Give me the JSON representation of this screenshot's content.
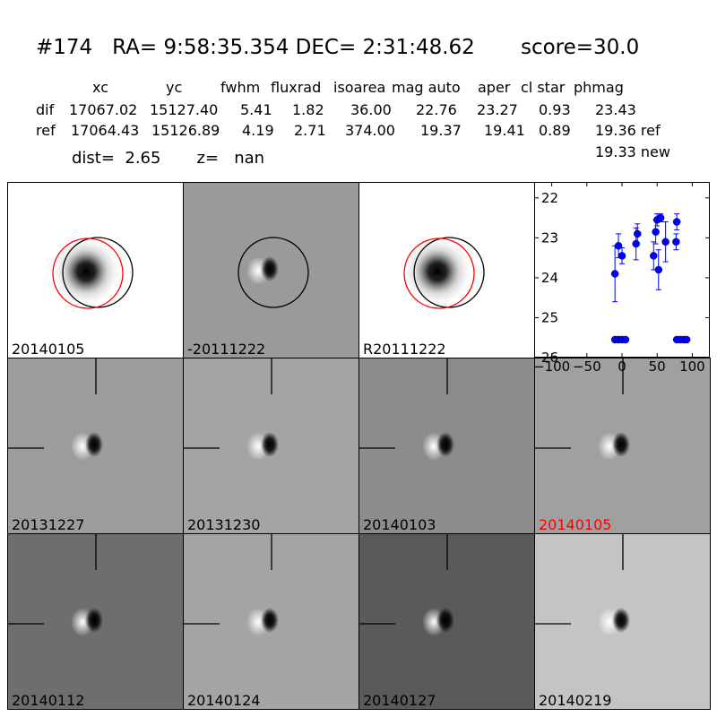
{
  "header": {
    "title": "#174   RA= 9:58:35.354 DEC= 2:31:48.62       score=30.0",
    "columns": [
      "xc",
      "yc",
      "fwhm",
      "fluxrad",
      "isoarea",
      "mag auto",
      "aper",
      "cl star",
      "phmag"
    ],
    "rows": [
      {
        "label": "dif",
        "values": [
          "17067.02",
          "15127.40",
          "5.41",
          "1.82",
          "36.00",
          "22.76",
          "23.27",
          "0.93",
          "23.43"
        ]
      },
      {
        "label": "ref",
        "values": [
          "17064.43",
          "15126.89",
          "4.19",
          "2.71",
          "374.00",
          "19.37",
          "19.41",
          "0.89",
          "19.36 ref"
        ]
      }
    ],
    "new_mag": "19.33 new",
    "dist_text": "dist=  2.65       z=   nan"
  },
  "panels": [
    {
      "label": "20140105",
      "kind": "new",
      "bg": "#ffffff",
      "circles": true
    },
    {
      "label": "-20111222",
      "kind": "diff",
      "bg": "#9a9a9a",
      "circles": true
    },
    {
      "label": "R20111222",
      "kind": "new",
      "bg": "#ffffff",
      "circles": true
    },
    {
      "label": "20131227",
      "kind": "diff",
      "bg": "#9c9c9c"
    },
    {
      "label": "20131230",
      "kind": "diff",
      "bg": "#a4a4a4"
    },
    {
      "label": "20140103",
      "kind": "diff",
      "bg": "#8c8c8c"
    },
    {
      "label": "20140105",
      "kind": "diff",
      "bg": "#a0a0a0",
      "highlight": true
    },
    {
      "label": "20140112",
      "kind": "diff",
      "bg": "#6e6e6e"
    },
    {
      "label": "20140124",
      "kind": "diff",
      "bg": "#a4a4a4"
    },
    {
      "label": "20140127",
      "kind": "diff",
      "bg": "#5a5a5a"
    },
    {
      "label": "20140219",
      "kind": "diff",
      "bg": "#c4c4c4"
    }
  ],
  "colors": {
    "highlight": "#ff0000",
    "circle_a": "#ff0000",
    "circle_b": "#000000",
    "points": "#0000ff"
  },
  "chart_data": {
    "type": "scatter",
    "x_ticks": [
      "−100",
      "−50",
      "0",
      "50",
      "100"
    ],
    "y_ticks": [
      "22",
      "23",
      "24",
      "25",
      "26"
    ],
    "xlim": [
      -125,
      125
    ],
    "ylim": [
      26,
      21.6
    ],
    "points": [
      {
        "x": -10,
        "y": 23.9,
        "err": 0.7
      },
      {
        "x": -5,
        "y": 23.2,
        "err": 0.3
      },
      {
        "x": 0,
        "y": 23.45,
        "err": 0.2
      },
      {
        "x": 20,
        "y": 23.15,
        "err": 0.4
      },
      {
        "x": 22,
        "y": 22.9,
        "err": 0.25
      },
      {
        "x": 45,
        "y": 23.45,
        "err": 0.35
      },
      {
        "x": 48,
        "y": 22.85,
        "err": 0.3
      },
      {
        "x": 50,
        "y": 22.55,
        "err": 0.15
      },
      {
        "x": 52,
        "y": 23.8,
        "err": 0.5
      },
      {
        "x": 55,
        "y": 22.5,
        "err": 0.1
      },
      {
        "x": 62,
        "y": 23.1,
        "err": 0.5
      },
      {
        "x": 77,
        "y": 23.1,
        "err": 0.2
      },
      {
        "x": 78,
        "y": 22.6,
        "err": 0.2
      },
      {
        "x": -10,
        "y": 25.55,
        "err": 0
      },
      {
        "x": -5,
        "y": 25.55,
        "err": 0
      },
      {
        "x": 0,
        "y": 25.55,
        "err": 0
      },
      {
        "x": 5,
        "y": 25.55,
        "err": 0
      },
      {
        "x": 78,
        "y": 25.55,
        "err": 0
      },
      {
        "x": 83,
        "y": 25.55,
        "err": 0
      },
      {
        "x": 88,
        "y": 25.55,
        "err": 0
      },
      {
        "x": 92,
        "y": 25.55,
        "err": 0
      }
    ]
  }
}
